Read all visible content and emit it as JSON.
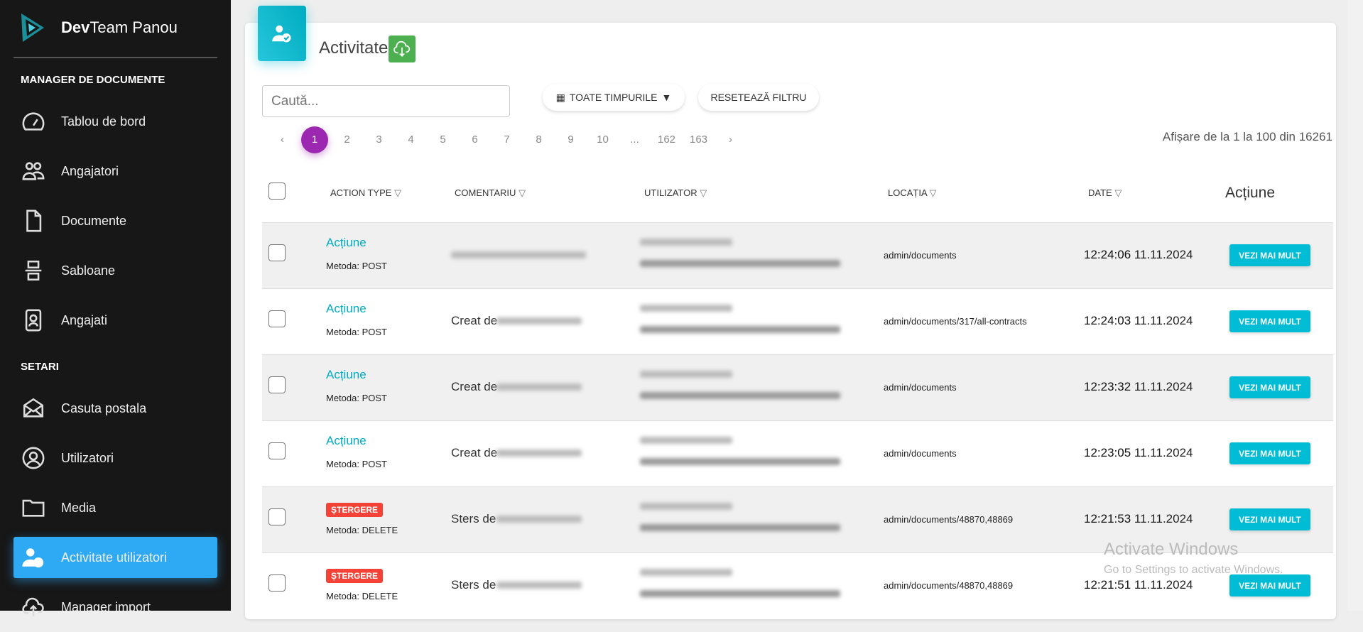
{
  "brand": {
    "bold": "Dev",
    "rest": "Team Panou"
  },
  "sidebar": {
    "sections": [
      "MANAGER DE DOCUMENTE",
      "SETARI"
    ],
    "items": [
      {
        "label": "Tablou de bord",
        "icon": "dashboard-gauge-icon"
      },
      {
        "label": "Angajatori",
        "icon": "users-icon"
      },
      {
        "label": "Documente",
        "icon": "document-icon"
      },
      {
        "label": "Sabloane",
        "icon": "template-icon"
      },
      {
        "label": "Angajati",
        "icon": "id-badge-icon"
      },
      {
        "label": "Casuta postala",
        "icon": "mail-icon"
      },
      {
        "label": "Utilizatori",
        "icon": "user-circle-icon"
      },
      {
        "label": "Media",
        "icon": "folder-icon"
      },
      {
        "label": "Activitate utilizatori",
        "icon": "user-check-icon",
        "active": true
      },
      {
        "label": "Manager import",
        "icon": "cloud-upload-icon"
      }
    ]
  },
  "header": {
    "title": "Activitate",
    "download_icon": "cloud-download-icon"
  },
  "filters": {
    "search_placeholder": "Caută...",
    "time_label": "TOATE TIMPURILE",
    "reset_label": "RESETEAZĂ FILTRU"
  },
  "pagination": {
    "prev": "‹",
    "next": "›",
    "pages": [
      "1",
      "2",
      "3",
      "4",
      "5",
      "6",
      "7",
      "8",
      "9",
      "10",
      "...",
      "162",
      "163"
    ],
    "current": "1",
    "info": "Afișare de la 1 la 100 din 16261"
  },
  "table": {
    "headers": [
      "ACTION TYPE",
      "COMENTARIU",
      "UTILIZATOR",
      "LOCAȚIA",
      "DATE",
      "Acțiune"
    ],
    "rows": [
      {
        "type": "Acțiune",
        "badge": false,
        "method": "Metoda: POST",
        "comment": "",
        "location": "admin/documents",
        "time": "12:24:06",
        "date": "11.11.2024",
        "button": "VEZI MAI MULT"
      },
      {
        "type": "Acțiune",
        "badge": false,
        "method": "Metoda: POST",
        "comment": "Creat de",
        "location": "admin/documents/317/all-contracts",
        "time": "12:24:03",
        "date": "11.11.2024",
        "button": "VEZI MAI MULT"
      },
      {
        "type": "Acțiune",
        "badge": false,
        "method": "Metoda: POST",
        "comment": "Creat de",
        "location": "admin/documents",
        "time": "12:23:32",
        "date": "11.11.2024",
        "button": "VEZI MAI MULT"
      },
      {
        "type": "Acțiune",
        "badge": false,
        "method": "Metoda: POST",
        "comment": "Creat de",
        "location": "admin/documents",
        "time": "12:23:05",
        "date": "11.11.2024",
        "button": "VEZI MAI MULT"
      },
      {
        "type": "ȘTERGERE",
        "badge": true,
        "method": "Metoda: DELETE",
        "comment": "Sters de",
        "location": "admin/documents/48870,48869",
        "time": "12:21:53",
        "date": "11.11.2024",
        "button": "VEZI MAI MULT"
      },
      {
        "type": "ȘTERGERE",
        "badge": true,
        "method": "Metoda: DELETE",
        "comment": "Sters de",
        "location": "admin/documents/48870,48869",
        "time": "12:21:51",
        "date": "11.11.2024",
        "button": "VEZI MAI MULT"
      }
    ]
  },
  "watermark": {
    "title": "Activate Windows",
    "sub": "Go to Settings to activate Windows."
  },
  "colors": {
    "accent": "#00bcd4",
    "active_page": "#9c27b0",
    "sidebar_active": "#2eaaf5",
    "delete_badge": "#f44336",
    "download": "#4caf50"
  }
}
